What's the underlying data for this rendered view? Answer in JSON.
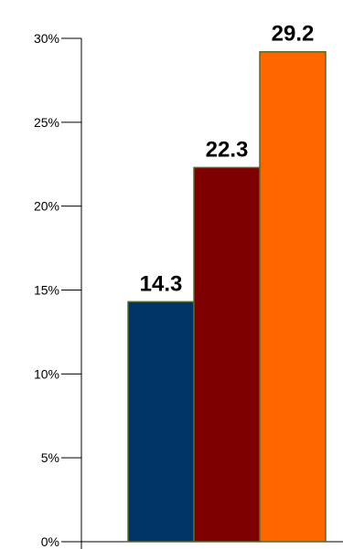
{
  "chart_data": {
    "type": "bar",
    "categories": [
      "",
      "",
      ""
    ],
    "values": [
      14.3,
      22.3,
      29.2
    ],
    "data_labels": [
      "14.3",
      "22.3",
      "29.2"
    ],
    "colors": [
      "#003366",
      "#7f0000",
      "#ff6600"
    ],
    "bar_border_color": "#556b2f",
    "title": "",
    "xlabel": "",
    "ylabel": "",
    "ylim": [
      0,
      30
    ],
    "yticks": [
      0,
      5,
      10,
      15,
      20,
      25,
      30
    ],
    "ytick_labels": [
      "0%",
      "5%",
      "10%",
      "15%",
      "20%",
      "25%",
      "30%"
    ],
    "grid": false,
    "legend": "none"
  }
}
